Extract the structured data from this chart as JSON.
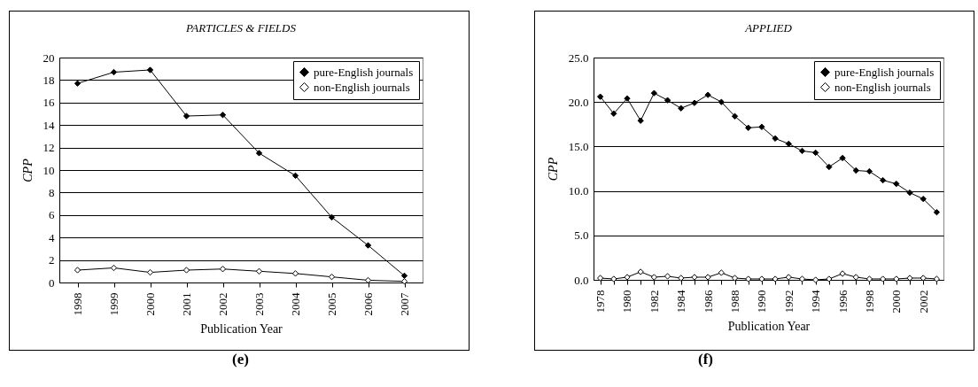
{
  "chart_data": [
    {
      "type": "line",
      "title": "PARTICLES & FIELDS",
      "xlabel": "Publication Year",
      "ylabel": "CPP",
      "categories": [
        "1998",
        "1999",
        "2000",
        "2001",
        "2002",
        "2003",
        "2004",
        "2005",
        "2006",
        "2007"
      ],
      "series": [
        {
          "name": "pure-English journals",
          "color": "#000000",
          "values": [
            17.7,
            18.7,
            18.9,
            14.8,
            14.9,
            11.5,
            9.5,
            5.8,
            3.3,
            0.6
          ]
        },
        {
          "name": "non-English journals",
          "color": "#000000",
          "values": [
            1.1,
            1.3,
            0.9,
            1.1,
            1.2,
            1.0,
            0.8,
            0.5,
            0.2,
            0.1
          ]
        }
      ],
      "ylim": [
        0,
        20
      ],
      "yticks": [
        0,
        2,
        4,
        6,
        8,
        10,
        12,
        14,
        16,
        18,
        20
      ],
      "grid": "y",
      "legend": "top right",
      "marker": "diamond",
      "annotations": [
        "(e)"
      ]
    },
    {
      "type": "line",
      "title": "APPLIED",
      "xlabel": "Publication Year",
      "ylabel": "CPP",
      "categories": [
        "1978",
        null,
        "1980",
        null,
        "1982",
        null,
        "1984",
        null,
        "1986",
        null,
        "1988",
        null,
        "1990",
        null,
        "1992",
        null,
        "1994",
        null,
        "1996",
        null,
        "1998",
        null,
        "2000",
        null,
        "2002",
        null
      ],
      "series": [
        {
          "name": "pure-English journals",
          "color": "#000000",
          "values": [
            20.6,
            18.7,
            20.4,
            17.9,
            21.0,
            20.2,
            19.3,
            19.9,
            20.8,
            20.0,
            18.4,
            17.1,
            17.2,
            15.9,
            15.3,
            14.5,
            14.3,
            12.7,
            13.7,
            12.3,
            12.2,
            11.2,
            10.8,
            9.8,
            9.1,
            7.6
          ]
        },
        {
          "name": "non-English journals",
          "color": "#000000",
          "values": [
            0.2,
            0.1,
            0.3,
            0.9,
            0.3,
            0.4,
            0.2,
            0.3,
            0.3,
            0.8,
            0.2,
            0.1,
            0.1,
            0.1,
            0.3,
            0.1,
            0.0,
            0.1,
            0.7,
            0.3,
            0.1,
            0.1,
            0.1,
            0.2,
            0.2,
            0.1
          ]
        }
      ],
      "ylim": [
        0,
        25
      ],
      "yticks": [
        {
          "value": 0,
          "label": "0.0"
        },
        {
          "value": 5,
          "label": "5.0"
        },
        {
          "value": 10,
          "label": "10.0"
        },
        {
          "value": 15,
          "label": "15.0"
        },
        {
          "value": 20,
          "label": "20.0"
        },
        {
          "value": 25,
          "label": "25.0"
        }
      ],
      "grid": "y",
      "legend": "top right",
      "marker": "diamond",
      "annotations": [
        "(f)"
      ]
    }
  ]
}
